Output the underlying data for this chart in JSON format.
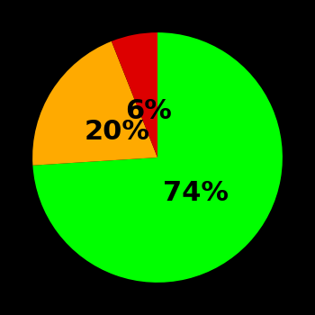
{
  "slices": [
    74,
    20,
    6
  ],
  "colors": [
    "#00ff00",
    "#ffaa00",
    "#dd0000"
  ],
  "labels": [
    "74%",
    "20%",
    "6%"
  ],
  "background_color": "#000000",
  "startangle": 90,
  "label_fontsize": 22,
  "label_fontweight": "bold",
  "label_radii": [
    0.42,
    0.38,
    0.38
  ]
}
